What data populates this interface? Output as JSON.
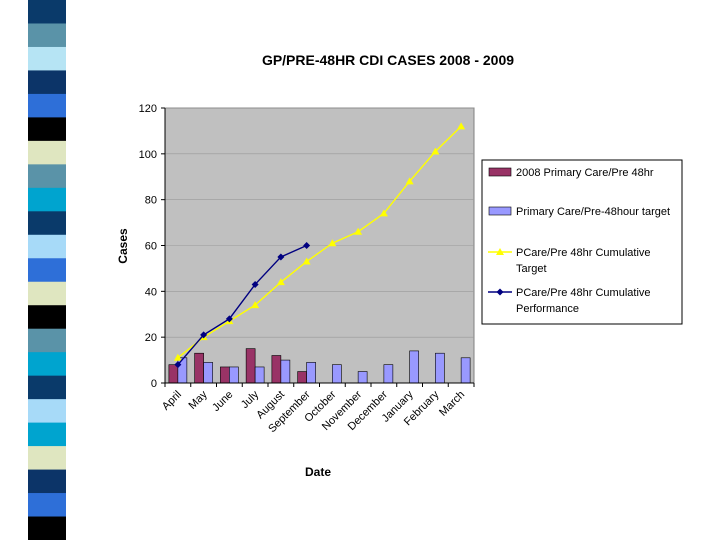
{
  "slide": {
    "stripe_colors": [
      "#0a3a6a",
      "#5a93a8",
      "#b6e4f4",
      "#0c3468",
      "#2e6fd8",
      "#000000",
      "#dfe6c0",
      "#5a93a8",
      "#00a4cf",
      "#0a3a6a",
      "#a7daf8",
      "#2e6fd8",
      "#dfe6c0",
      "#000000",
      "#5a93a8",
      "#00a4cf",
      "#0a3a6a",
      "#a7daf8",
      "#00a4cf",
      "#dfe6c0",
      "#0c3468",
      "#2e6fd8",
      "#000000"
    ]
  },
  "chart_data": {
    "type": "bar",
    "title": "GP/PRE-48HR CDI CASES 2008 - 2009",
    "xlabel": "Date",
    "ylabel": "Cases",
    "ylim": [
      0,
      120
    ],
    "yticks": [
      0,
      20,
      40,
      60,
      80,
      100,
      120
    ],
    "categories": [
      "April",
      "May",
      "June",
      "July",
      "August",
      "September",
      "October",
      "November",
      "December",
      "January",
      "February",
      "March"
    ],
    "plot_background": "#c0c0c0",
    "series": [
      {
        "name": "2008 Primary Care/Pre 48hr",
        "kind": "bar",
        "color": "#993366",
        "values": [
          8,
          13,
          7,
          15,
          12,
          5,
          null,
          null,
          null,
          null,
          null,
          null
        ]
      },
      {
        "name": "Primary Care/Pre-48hour target",
        "kind": "bar",
        "color": "#9999ff",
        "values": [
          11,
          9,
          7,
          7,
          10,
          9,
          8,
          5,
          8,
          14,
          13,
          11
        ]
      },
      {
        "name": "PCare/Pre 48hr Cumulative Target",
        "kind": "line",
        "marker": "triangle",
        "color": "#ffff00",
        "values": [
          11,
          20,
          27,
          34,
          44,
          53,
          61,
          66,
          74,
          88,
          101,
          112
        ]
      },
      {
        "name": "PCare/Pre 48hr Cumulative Performance",
        "kind": "line",
        "marker": "diamond",
        "color": "#000080",
        "values": [
          8,
          21,
          28,
          43,
          55,
          60,
          null,
          null,
          null,
          null,
          null,
          null
        ]
      }
    ],
    "legend": {
      "placement": "right",
      "entries": [
        {
          "lines": [
            "2008 Primary Care/Pre 48hr"
          ]
        },
        {
          "lines": [
            "Primary Care/Pre-48hour target"
          ]
        },
        {
          "lines": [
            "PCare/Pre 48hr Cumulative",
            "Target"
          ]
        },
        {
          "lines": [
            "PCare/Pre 48hr Cumulative",
            "Performance"
          ]
        }
      ]
    }
  }
}
